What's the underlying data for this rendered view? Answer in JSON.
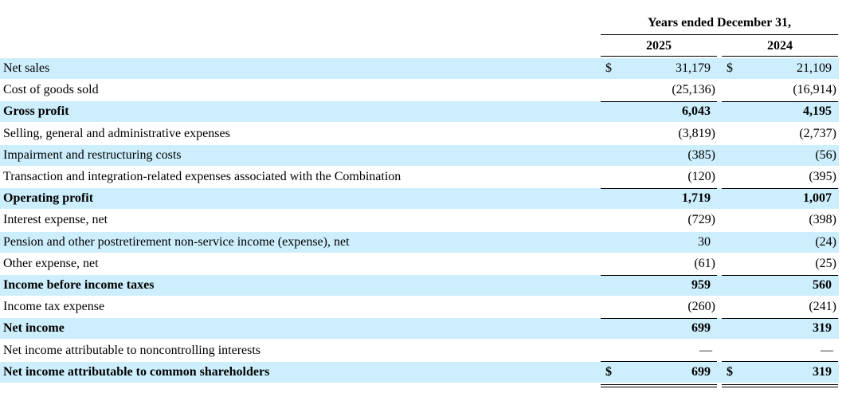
{
  "header": {
    "title": "Years ended December 31,",
    "columns": [
      "2025",
      "2024"
    ]
  },
  "table": {
    "rows": [
      {
        "label": "Net sales",
        "cells": [
          {
            "currency": "$",
            "value": "31,179"
          },
          {
            "currency": "$",
            "value": "21,109"
          }
        ]
      },
      {
        "label": "Cost of goods sold",
        "cells": [
          {
            "value": "(25,136)"
          },
          {
            "value": "(16,914)"
          }
        ]
      },
      {
        "label": "Gross profit",
        "bold": true,
        "cells": [
          {
            "value": "6,043"
          },
          {
            "value": "4,195"
          }
        ]
      },
      {
        "label": "Selling, general and administrative expenses",
        "cells": [
          {
            "value": "(3,819)"
          },
          {
            "value": "(2,737)"
          }
        ]
      },
      {
        "label": "Impairment and restructuring costs",
        "cells": [
          {
            "value": "(385)"
          },
          {
            "value": "(56)"
          }
        ]
      },
      {
        "label": "Transaction and integration-related expenses associated with the Combination",
        "cells": [
          {
            "value": "(120)"
          },
          {
            "value": "(395)"
          }
        ]
      },
      {
        "label": "Operating profit",
        "bold": true,
        "cells": [
          {
            "value": "1,719"
          },
          {
            "value": "1,007"
          }
        ]
      },
      {
        "label": "Interest expense, net",
        "cells": [
          {
            "value": "(729)"
          },
          {
            "value": "(398)"
          }
        ]
      },
      {
        "label": "Pension and other postretirement non-service income (expense), net",
        "cells": [
          {
            "value": "30"
          },
          {
            "value": "(24)"
          }
        ]
      },
      {
        "label": "Other expense, net",
        "cells": [
          {
            "value": "(61)"
          },
          {
            "value": "(25)"
          }
        ]
      },
      {
        "label": "Income before income taxes",
        "bold": true,
        "cells": [
          {
            "value": "959"
          },
          {
            "value": "560"
          }
        ]
      },
      {
        "label": "Income tax expense",
        "cells": [
          {
            "value": "(260)"
          },
          {
            "value": "(241)"
          }
        ]
      },
      {
        "label": "Net income",
        "bold": true,
        "cells": [
          {
            "value": "699"
          },
          {
            "value": "319"
          }
        ]
      },
      {
        "label": "Net income attributable to noncontrolling interests",
        "cells": [
          {
            "value": "—"
          },
          {
            "value": "—"
          }
        ]
      },
      {
        "label": "Net income attributable to common shareholders",
        "bold": true,
        "cells": [
          {
            "currency": "$",
            "value": "699"
          },
          {
            "currency": "$",
            "value": "319"
          }
        ]
      }
    ]
  }
}
